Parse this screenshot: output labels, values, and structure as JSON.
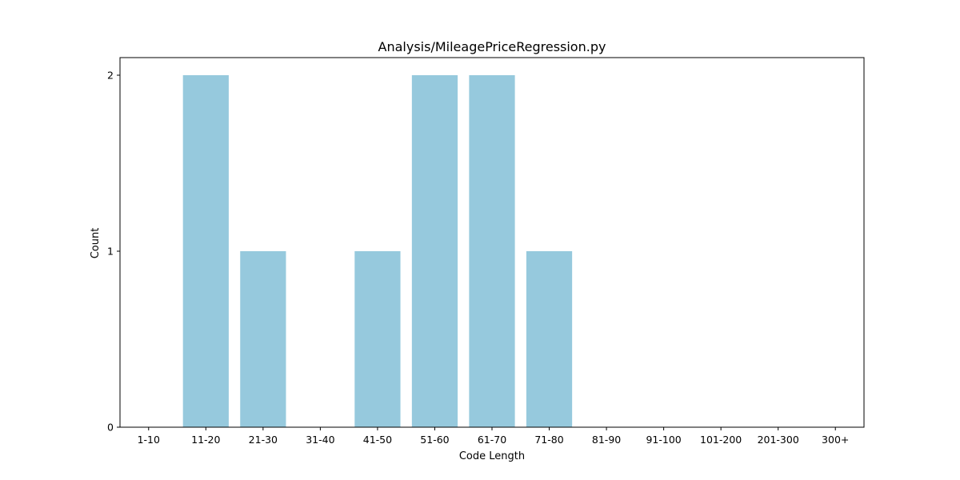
{
  "chart_data": {
    "type": "bar",
    "title": "Analysis/MileagePriceRegression.py",
    "xlabel": "Code Length",
    "ylabel": "Count",
    "categories": [
      "1-10",
      "11-20",
      "21-30",
      "31-40",
      "41-50",
      "51-60",
      "61-70",
      "71-80",
      "81-90",
      "91-100",
      "101-200",
      "201-300",
      "300+"
    ],
    "values": [
      0,
      2,
      1,
      0,
      1,
      2,
      2,
      1,
      0,
      0,
      0,
      0,
      0
    ],
    "ylim": [
      0,
      2.1
    ],
    "yticks": [
      "0",
      "1",
      "2"
    ],
    "bar_color": "#96c9dd",
    "grid": false,
    "legend": "none"
  }
}
